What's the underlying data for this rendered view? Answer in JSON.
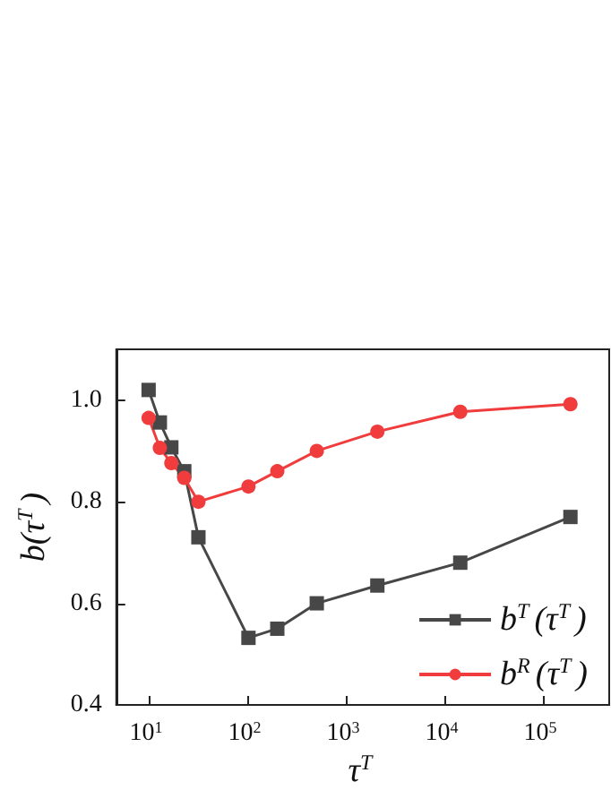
{
  "chart_data": {
    "type": "line",
    "xlabel": "τ$^{T}$",
    "ylabel": "b(τ$^{T}$)",
    "x": [
      10,
      13,
      17,
      23,
      32,
      103,
      202,
      508,
      2090,
      14500,
      190000
    ],
    "series": [
      {
        "name": "b$^{T}$(τ$^{T}$)",
        "color": "#474747",
        "marker": "square",
        "values": [
          1.02,
          0.956,
          0.907,
          0.86,
          0.73,
          0.532,
          0.55,
          0.6,
          0.635,
          0.68,
          0.77
        ]
      },
      {
        "name": "b$^{R}$(τ$^{T}$)",
        "color": "#f03c3c",
        "marker": "circle",
        "values": [
          0.965,
          0.906,
          0.876,
          0.847,
          0.8,
          0.83,
          0.86,
          0.9,
          0.938,
          0.977,
          0.992
        ]
      }
    ],
    "log": "x",
    "xlim": [
      4.7,
      470000
    ],
    "xticks": [
      {
        "value": 10,
        "label": "10$^{1}$"
      },
      {
        "value": 100,
        "label": "10$^{2}$"
      },
      {
        "value": 1000,
        "label": "10$^{3}$"
      },
      {
        "value": 10000,
        "label": "10$^{4}$"
      },
      {
        "value": 100000,
        "label": "10$^{5}$"
      }
    ],
    "ylim": [
      0.4,
      1.1
    ],
    "yticks": [
      {
        "value": 0.4,
        "label": "0.4"
      },
      {
        "value": 0.6,
        "label": "0.6"
      },
      {
        "value": 0.8,
        "label": "0.8"
      },
      {
        "value": 1.0,
        "label": "1.0"
      }
    ],
    "grid": false,
    "legend": "bottom right",
    "line_style": "solid"
  }
}
